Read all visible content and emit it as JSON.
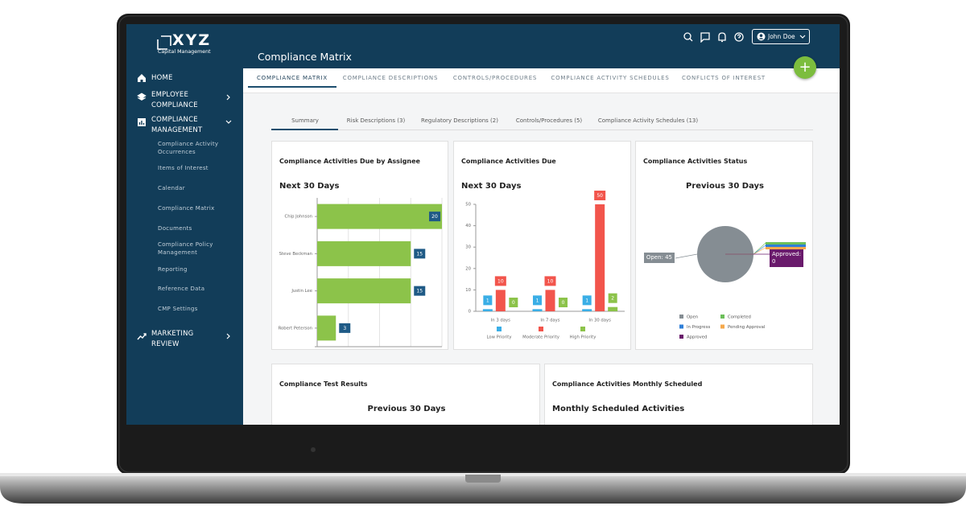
{
  "logo": {
    "name": "XYZ",
    "tagline": "Capital Management"
  },
  "page_title": "Compliance Matrix",
  "user": "John Doe",
  "nav": [
    {
      "label": "HOME"
    },
    {
      "label": "EMPLOYEE COMPLIANCE"
    },
    {
      "label": "COMPLIANCE MANAGEMENT",
      "items": [
        "Compliance Activity Occurrences",
        "Items of Interest",
        "Calendar",
        "Compliance Matrix",
        "Documents",
        "Compliance Policy Management",
        "Reporting",
        "Reference Data",
        "CMP Settings"
      ]
    },
    {
      "label": "MARKETING REVIEW"
    }
  ],
  "tabs": [
    "COMPLIANCE MATRIX",
    "COMPLIANCE DESCRIPTIONS",
    "CONTROLS/PROCEDURES",
    "COMPLIANCE ACTIVITY SCHEDULES",
    "CONFLICTS OF INTEREST"
  ],
  "subtabs": [
    "Summary",
    "Risk Descriptions (3)",
    "Regulatory Descriptions (2)",
    "Controls/Procedures (5)",
    "Compliance Activity Schedules (13)"
  ],
  "cards": [
    {
      "title": "Compliance Activities Due by Assignee",
      "subtitle": "Next 30 Days",
      "chart": {
        "type": "hbar",
        "categories": [
          "Chip Johnson",
          "Steve Beckman",
          "Justin Lee",
          "Robert Peterson"
        ],
        "values": [
          20,
          15,
          15,
          3
        ],
        "color": "#8cc34a",
        "label_color": "#1f5a86",
        "xlim": [
          0,
          20
        ],
        "xticks": [
          0,
          5,
          10,
          15,
          20
        ],
        "grid": true
      }
    },
    {
      "title": "Compliance Activities Due",
      "subtitle": "Next 30 Days",
      "chart": {
        "type": "bar",
        "categories": [
          "In 3 days",
          "In 7 days",
          "In 30 days"
        ],
        "series": [
          {
            "name": "Low Priority",
            "color": "#3aaee6",
            "values": [
              1,
              1,
              1
            ]
          },
          {
            "name": "Moderate Priority",
            "color": "#f2554c",
            "values": [
              10,
              10,
              50
            ]
          },
          {
            "name": "High Priority",
            "color": "#8cc34a",
            "values": [
              0,
              0,
              2
            ]
          }
        ],
        "ylim": [
          0,
          50
        ],
        "yticks": [
          0,
          10,
          20,
          30,
          40,
          50
        ]
      }
    },
    {
      "title": "Compliance Activities Status",
      "subtitle": "Previous 30 Days",
      "chart": {
        "type": "pie",
        "categories": [
          "Open",
          "Completed",
          "In Progress",
          "Pending Approval",
          "Approved"
        ],
        "values": [
          45,
          0,
          0,
          0,
          0
        ],
        "value_labels": [
          "Open: 45",
          null,
          null,
          null,
          "Approved: 0"
        ],
        "colors": [
          "#858d93",
          "#6cbf5a",
          "#2f7fd8",
          "#f5a84c",
          "#6a1a6c"
        ]
      }
    },
    {
      "title": "Compliance Test Results",
      "subtitle": "Previous 30 Days"
    },
    {
      "title": "Compliance Activities Monthly Scheduled",
      "subtitle": "Monthly Scheduled Activities"
    }
  ]
}
